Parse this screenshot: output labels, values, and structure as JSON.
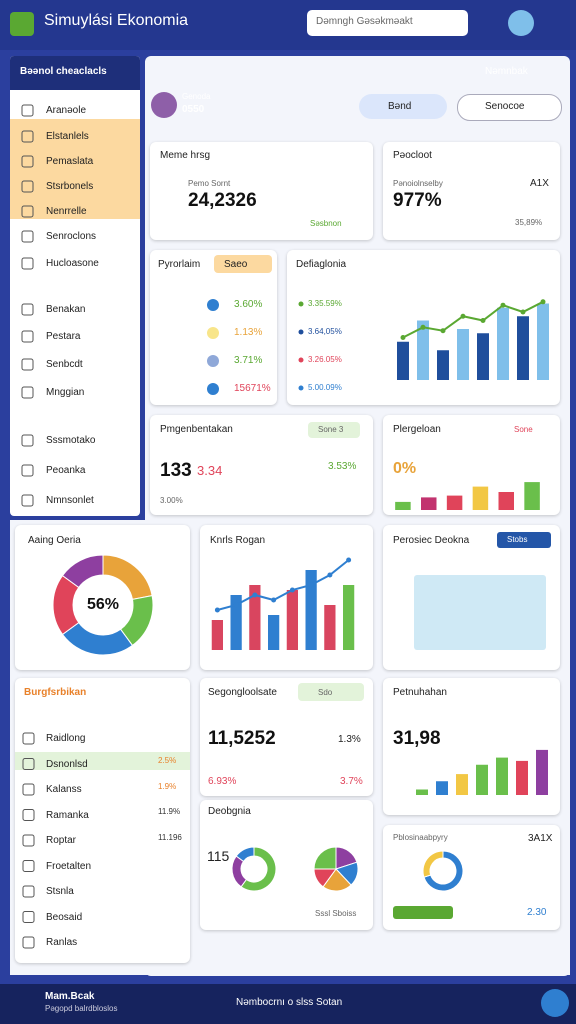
{
  "header": {
    "title": "Simuylási Ekonomia",
    "search": "Dəmngh Gəsəkməakt"
  },
  "sidebar": {
    "title": "Bəənol cheaclacls",
    "items": [
      "Aranəole",
      "Elstanlels",
      "Pemaslata",
      "Stsrbonels",
      "Nenrrelle",
      "Senroclons",
      "Hucloasone",
      "Benakan",
      "Pestara",
      "Senbcdt",
      "Mnggian",
      "Sssmotako",
      "Peoanka",
      "Nmnsonlet"
    ]
  },
  "topbar": {
    "user": "Nəmnbak",
    "profile_name": "Genoda",
    "profile_value": "0550",
    "button_a": "Bənd",
    "button_b": "Senocoe"
  },
  "card_a": {
    "title": "Meme hrsg",
    "sub": "Pemo Sornt",
    "value": "24,2326",
    "note": "Səsbnon"
  },
  "card_b": {
    "title": "Pəocloot",
    "sub": "Pənoiolnselby",
    "value": "977%",
    "side": "A1X",
    "note": "35,89%"
  },
  "card_c": {
    "title": "Pyrorlaim",
    "badge": "Saeo",
    "rows": [
      "3.60%",
      "1.13%",
      "3.71%",
      "15671%"
    ]
  },
  "card_d": {
    "title": "Defiaglonia",
    "legend": [
      "3.35.59%",
      "3.64,05%",
      "3.26.05%",
      "5.00.09%"
    ],
    "bars": [
      45,
      70,
      35,
      60,
      55,
      85,
      75,
      90
    ],
    "line": [
      50,
      62,
      58,
      75,
      70,
      88,
      80,
      92
    ],
    "colors": [
      "#1f4e9c",
      "#7fbfea"
    ],
    "line_color": "#5aa832"
  },
  "card_e": {
    "title": "Pmgenbentakan",
    "badge": "Sone 3",
    "value": "133",
    "delta": "3.34",
    "side": "3.53%",
    "note": "3.00%"
  },
  "card_f": {
    "title": "Plergeloan",
    "badge": "Sone",
    "value": "0%",
    "bars": [
      18,
      28,
      32,
      52,
      40,
      62
    ],
    "colors": [
      "#6abf4b",
      "#c2336f",
      "#e0445a",
      "#f2c744",
      "#e0445a",
      "#6abf4b"
    ]
  },
  "card_g": {
    "title": "Aaing Oeria",
    "center": "56%",
    "segments": [
      22,
      18,
      25,
      20,
      15
    ],
    "colors": [
      "#e8a33a",
      "#6abf4b",
      "#2f7fd0",
      "#e0445a",
      "#8e3fa0"
    ]
  },
  "card_h": {
    "title": "Knrls Rogan",
    "bars": [
      30,
      55,
      65,
      35,
      60,
      80,
      45,
      65
    ],
    "line": [
      40,
      45,
      55,
      50,
      60,
      65,
      75,
      90
    ],
    "colors": [
      "#d9455f",
      "#2f7fd0",
      "#d9455f",
      "#2f7fd0",
      "#d9455f",
      "#2f7fd0",
      "#d9455f",
      "#6abf4b"
    ],
    "line_color": "#2f7fd0"
  },
  "card_i": {
    "title": "Perosiec Deokna",
    "button": "Stobs"
  },
  "card_j": {
    "title": "Burgfsrbikan",
    "items": [
      "Raidlong",
      "Dsnonlsd",
      "Kalanss",
      "Ramanka",
      "Roptar",
      "Froetalten",
      "Stsnla",
      "Beosaid",
      "Ranlas"
    ],
    "values": [
      "2.5%",
      "1.9%",
      "11.9%",
      "11.196"
    ]
  },
  "card_k": {
    "title": "Segongloolsate",
    "badge": "Sdo",
    "value": "11,5252",
    "delta": "1.3%",
    "note": "6.93%",
    "side": "3.7%"
  },
  "card_l": {
    "title": "Deobgnia",
    "value": "115",
    "pie_a": [
      60,
      25,
      15
    ],
    "pie_b": [
      20,
      18,
      22,
      15,
      25
    ],
    "colors": [
      "#6abf4b",
      "#8e3fa0",
      "#2f7fd0",
      "#e8a33a",
      "#e0445a"
    ],
    "caption": "Sssl Sboiss"
  },
  "card_m": {
    "title": "Petnuhahan",
    "value": "31,98",
    "bars": [
      10,
      25,
      38,
      55,
      68,
      62,
      82
    ],
    "colors": [
      "#6abf4b",
      "#2f7fd0",
      "#f2c744",
      "#6abf4b",
      "#6abf4b",
      "#e0445a",
      "#8e3fa0"
    ]
  },
  "card_n": {
    "title": "Pblosinaabpyry",
    "side": "3A1X",
    "segments": [
      70,
      30
    ],
    "colors": [
      "#2f7fd0",
      "#f2c744"
    ],
    "note": "2.30"
  },
  "footer": {
    "title": "Mam.Bcak",
    "sub": "Pəgopd balrdbloslos",
    "center": "Nəmbocrnı o slss Sotan"
  }
}
